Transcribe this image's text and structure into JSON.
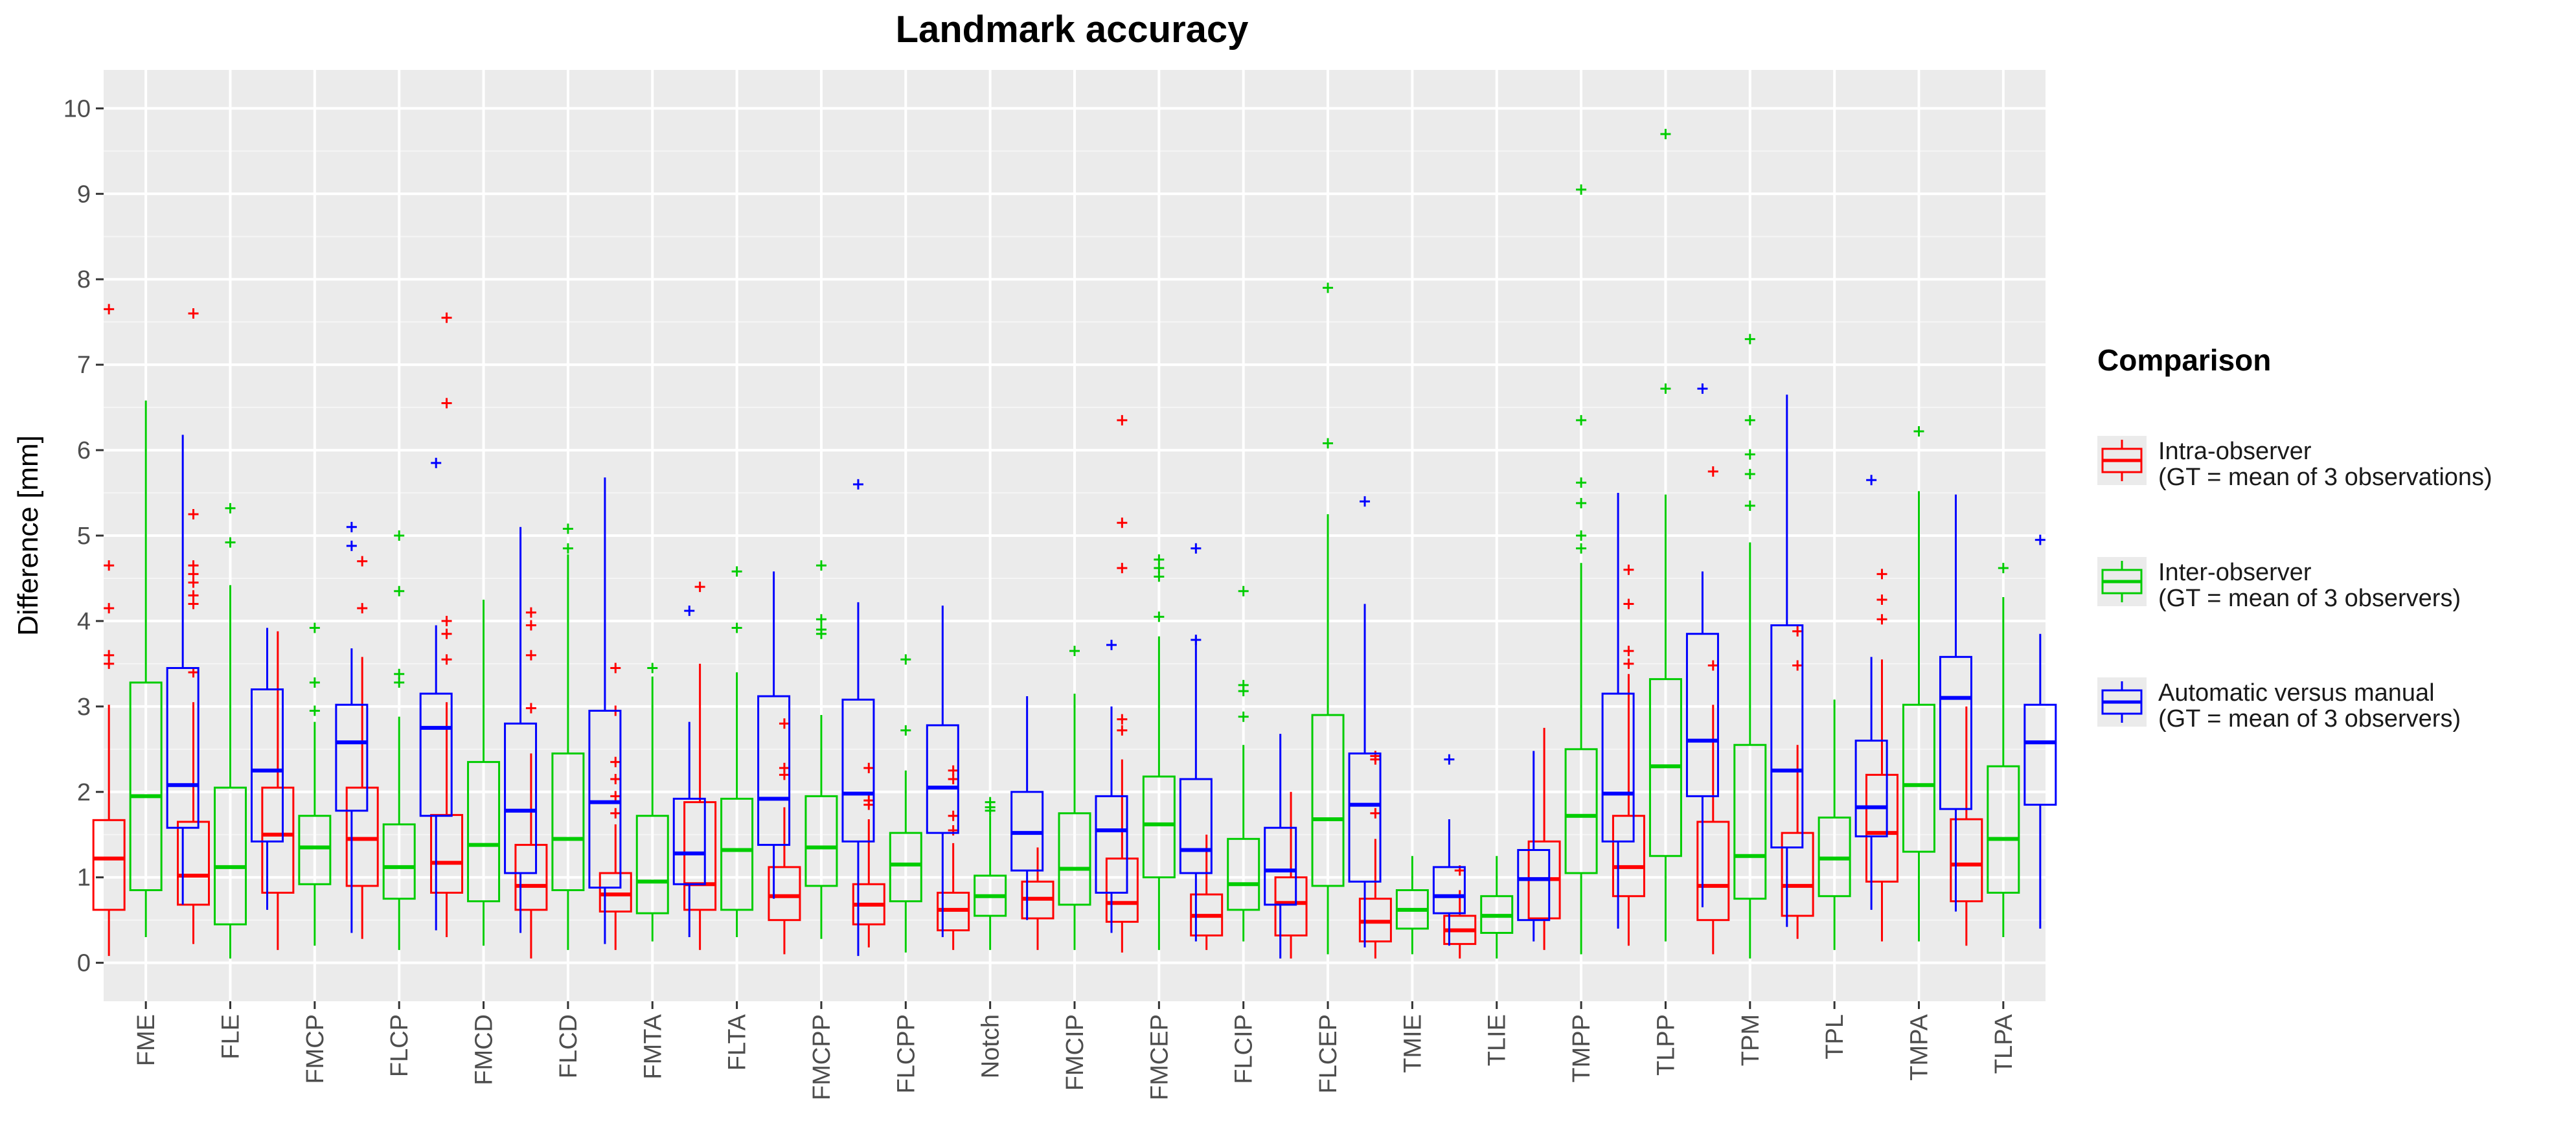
{
  "chart_data": {
    "type": "boxplot",
    "title": "Landmark accuracy",
    "xlabel": "",
    "ylabel": "Difference [mm]",
    "ylim": [
      -0.45,
      10.45
    ],
    "yticks": [
      0,
      1,
      2,
      3,
      4,
      5,
      6,
      7,
      8,
      9,
      10
    ],
    "grid": true,
    "legend_title": "Comparison",
    "legend_position": "right",
    "categories": [
      "FME",
      "FLE",
      "FMCP",
      "FLCP",
      "FMCD",
      "FLCD",
      "FMTA",
      "FLTA",
      "FMCPP",
      "FLCPP",
      "Notch",
      "FMCIP",
      "FMCEP",
      "FLCIP",
      "FLCEP",
      "TMIE",
      "TLIE",
      "TMPP",
      "TLPP",
      "TPM",
      "TPL",
      "TMPA",
      "TLPA"
    ],
    "series": [
      {
        "name": "Intra-observer",
        "label_lines": [
          "Intra-observer",
          "(GT = mean of 3 observations)"
        ],
        "color": "#ff0000",
        "stats": [
          {
            "min": 0.08,
            "q1": 0.62,
            "median": 1.22,
            "q3": 1.67,
            "max": 3.02,
            "outliers": [
              3.5,
              3.6,
              4.15,
              4.65,
              7.65
            ]
          },
          {
            "min": 0.22,
            "q1": 0.68,
            "median": 1.02,
            "q3": 1.65,
            "max": 3.05,
            "outliers": [
              3.4,
              4.2,
              4.3,
              4.45,
              4.55,
              4.65,
              5.25,
              7.6
            ]
          },
          {
            "min": 0.15,
            "q1": 0.82,
            "median": 1.5,
            "q3": 2.05,
            "max": 3.88,
            "outliers": []
          },
          {
            "min": 0.28,
            "q1": 0.9,
            "median": 1.45,
            "q3": 2.05,
            "max": 3.58,
            "outliers": [
              4.15,
              4.7
            ]
          },
          {
            "min": 0.3,
            "q1": 0.82,
            "median": 1.17,
            "q3": 1.73,
            "max": 3.05,
            "outliers": [
              3.55,
              3.85,
              4.0,
              6.55,
              7.55
            ]
          },
          {
            "min": 0.05,
            "q1": 0.62,
            "median": 0.9,
            "q3": 1.38,
            "max": 2.45,
            "outliers": [
              2.98,
              3.6,
              3.95,
              4.1
            ]
          },
          {
            "min": 0.15,
            "q1": 0.6,
            "median": 0.8,
            "q3": 1.05,
            "max": 1.62,
            "outliers": [
              1.75,
              1.95,
              2.15,
              2.35,
              2.95,
              3.45
            ]
          },
          {
            "min": 0.15,
            "q1": 0.62,
            "median": 0.92,
            "q3": 1.88,
            "max": 3.5,
            "outliers": [
              4.4
            ]
          },
          {
            "min": 0.1,
            "q1": 0.5,
            "median": 0.78,
            "q3": 1.12,
            "max": 1.82,
            "outliers": [
              2.2,
              2.28,
              2.8
            ]
          },
          {
            "min": 0.18,
            "q1": 0.45,
            "median": 0.68,
            "q3": 0.92,
            "max": 1.68,
            "outliers": [
              1.85,
              1.9,
              2.28
            ]
          },
          {
            "min": 0.15,
            "q1": 0.38,
            "median": 0.62,
            "q3": 0.82,
            "max": 1.4,
            "outliers": [
              1.55,
              1.72,
              2.15,
              2.25
            ]
          },
          {
            "min": 0.15,
            "q1": 0.52,
            "median": 0.75,
            "q3": 0.95,
            "max": 1.35,
            "outliers": []
          },
          {
            "min": 0.12,
            "q1": 0.48,
            "median": 0.7,
            "q3": 1.22,
            "max": 2.38,
            "outliers": [
              2.72,
              2.85,
              4.62,
              5.15,
              6.35
            ]
          },
          {
            "min": 0.15,
            "q1": 0.32,
            "median": 0.55,
            "q3": 0.8,
            "max": 1.5,
            "outliers": []
          },
          {
            "min": 0.05,
            "q1": 0.32,
            "median": 0.7,
            "q3": 1.0,
            "max": 2.0,
            "outliers": []
          },
          {
            "min": 0.05,
            "q1": 0.25,
            "median": 0.48,
            "q3": 0.75,
            "max": 1.45,
            "outliers": [
              1.75,
              2.38,
              2.42
            ]
          },
          {
            "min": 0.05,
            "q1": 0.22,
            "median": 0.38,
            "q3": 0.55,
            "max": 0.85,
            "outliers": [
              1.08
            ]
          },
          {
            "min": 0.15,
            "q1": 0.52,
            "median": 0.98,
            "q3": 1.42,
            "max": 2.75,
            "outliers": []
          },
          {
            "min": 0.2,
            "q1": 0.78,
            "median": 1.12,
            "q3": 1.72,
            "max": 3.38,
            "outliers": [
              3.5,
              3.65,
              4.2,
              4.6
            ]
          },
          {
            "min": 0.1,
            "q1": 0.5,
            "median": 0.9,
            "q3": 1.65,
            "max": 3.02,
            "outliers": [
              3.48,
              5.75
            ]
          },
          {
            "min": 0.28,
            "q1": 0.55,
            "median": 0.9,
            "q3": 1.52,
            "max": 2.55,
            "outliers": [
              3.48,
              3.88
            ]
          },
          {
            "min": 0.25,
            "q1": 0.95,
            "median": 1.52,
            "q3": 2.2,
            "max": 3.55,
            "outliers": [
              4.02,
              4.25,
              4.55
            ]
          },
          {
            "min": 0.2,
            "q1": 0.72,
            "median": 1.15,
            "q3": 1.68,
            "max": 3.0,
            "outliers": []
          }
        ]
      },
      {
        "name": "Inter-observer",
        "label_lines": [
          "Inter-observer",
          "(GT = mean of 3 observers)"
        ],
        "color": "#00cc00",
        "stats": [
          {
            "min": 0.3,
            "q1": 0.85,
            "median": 1.95,
            "q3": 3.28,
            "max": 6.58,
            "outliers": []
          },
          {
            "min": 0.05,
            "q1": 0.45,
            "median": 1.12,
            "q3": 2.05,
            "max": 4.42,
            "outliers": [
              4.92,
              5.32
            ]
          },
          {
            "min": 0.2,
            "q1": 0.92,
            "median": 1.35,
            "q3": 1.72,
            "max": 2.82,
            "outliers": [
              2.95,
              3.28,
              3.92
            ]
          },
          {
            "min": 0.15,
            "q1": 0.75,
            "median": 1.12,
            "q3": 1.62,
            "max": 2.88,
            "outliers": [
              3.28,
              3.38,
              4.35,
              5.0
            ]
          },
          {
            "min": 0.2,
            "q1": 0.72,
            "median": 1.38,
            "q3": 2.35,
            "max": 4.25,
            "outliers": []
          },
          {
            "min": 0.15,
            "q1": 0.85,
            "median": 1.45,
            "q3": 2.45,
            "max": 4.78,
            "outliers": [
              4.85,
              5.08
            ]
          },
          {
            "min": 0.25,
            "q1": 0.58,
            "median": 0.95,
            "q3": 1.72,
            "max": 3.35,
            "outliers": [
              3.45
            ]
          },
          {
            "min": 0.3,
            "q1": 0.62,
            "median": 1.32,
            "q3": 1.92,
            "max": 3.4,
            "outliers": [
              3.92,
              4.58
            ]
          },
          {
            "min": 0.28,
            "q1": 0.9,
            "median": 1.35,
            "q3": 1.95,
            "max": 2.9,
            "outliers": [
              3.85,
              3.9,
              4.02,
              4.65
            ]
          },
          {
            "min": 0.12,
            "q1": 0.72,
            "median": 1.15,
            "q3": 1.52,
            "max": 2.25,
            "outliers": [
              2.72,
              3.55
            ]
          },
          {
            "min": 0.15,
            "q1": 0.55,
            "median": 0.78,
            "q3": 1.02,
            "max": 1.72,
            "outliers": [
              1.78,
              1.82,
              1.88
            ]
          },
          {
            "min": 0.15,
            "q1": 0.68,
            "median": 1.1,
            "q3": 1.75,
            "max": 3.15,
            "outliers": [
              3.65
            ]
          },
          {
            "min": 0.15,
            "q1": 1.0,
            "median": 1.62,
            "q3": 2.18,
            "max": 3.82,
            "outliers": [
              4.05,
              4.52,
              4.62,
              4.72
            ]
          },
          {
            "min": 0.25,
            "q1": 0.62,
            "median": 0.92,
            "q3": 1.45,
            "max": 2.55,
            "outliers": [
              2.88,
              3.18,
              3.25,
              4.35
            ]
          },
          {
            "min": 0.1,
            "q1": 0.9,
            "median": 1.68,
            "q3": 2.9,
            "max": 5.25,
            "outliers": [
              6.08,
              7.9
            ]
          },
          {
            "min": 0.1,
            "q1": 0.4,
            "median": 0.62,
            "q3": 0.85,
            "max": 1.25,
            "outliers": []
          },
          {
            "min": 0.05,
            "q1": 0.35,
            "median": 0.55,
            "q3": 0.78,
            "max": 1.25,
            "outliers": []
          },
          {
            "min": 0.1,
            "q1": 1.05,
            "median": 1.72,
            "q3": 2.5,
            "max": 4.68,
            "outliers": [
              4.85,
              5.0,
              5.38,
              5.62,
              6.35,
              9.05
            ]
          },
          {
            "min": 0.25,
            "q1": 1.25,
            "median": 2.3,
            "q3": 3.32,
            "max": 5.48,
            "outliers": [
              6.72,
              9.7
            ]
          },
          {
            "min": 0.05,
            "q1": 0.75,
            "median": 1.25,
            "q3": 2.55,
            "max": 4.92,
            "outliers": [
              5.35,
              5.72,
              5.95,
              6.35,
              7.3
            ]
          },
          {
            "min": 0.15,
            "q1": 0.78,
            "median": 1.22,
            "q3": 1.7,
            "max": 3.08,
            "outliers": []
          },
          {
            "min": 0.25,
            "q1": 1.3,
            "median": 2.08,
            "q3": 3.02,
            "max": 5.52,
            "outliers": [
              6.22
            ]
          },
          {
            "min": 0.3,
            "q1": 0.82,
            "median": 1.45,
            "q3": 2.3,
            "max": 4.28,
            "outliers": [
              4.62
            ]
          }
        ]
      },
      {
        "name": "Automatic versus manual",
        "label_lines": [
          "Automatic versus manual",
          "(GT = mean of 3 observers)"
        ],
        "color": "#0000ff",
        "stats": [
          {
            "min": 0.68,
            "q1": 1.58,
            "median": 2.08,
            "q3": 3.45,
            "max": 6.18,
            "outliers": []
          },
          {
            "min": 0.62,
            "q1": 1.42,
            "median": 2.25,
            "q3": 3.2,
            "max": 3.92,
            "outliers": []
          },
          {
            "min": 0.35,
            "q1": 1.78,
            "median": 2.58,
            "q3": 3.02,
            "max": 3.68,
            "outliers": [
              4.88,
              5.1
            ]
          },
          {
            "min": 0.38,
            "q1": 1.72,
            "median": 2.75,
            "q3": 3.15,
            "max": 3.95,
            "outliers": [
              5.85
            ]
          },
          {
            "min": 0.35,
            "q1": 1.05,
            "median": 1.78,
            "q3": 2.8,
            "max": 5.1,
            "outliers": []
          },
          {
            "min": 0.22,
            "q1": 0.88,
            "median": 1.88,
            "q3": 2.95,
            "max": 5.68,
            "outliers": []
          },
          {
            "min": 0.3,
            "q1": 0.92,
            "median": 1.28,
            "q3": 1.92,
            "max": 2.82,
            "outliers": [
              4.12
            ]
          },
          {
            "min": 0.75,
            "q1": 1.38,
            "median": 1.92,
            "q3": 3.12,
            "max": 4.58,
            "outliers": []
          },
          {
            "min": 0.08,
            "q1": 1.42,
            "median": 1.98,
            "q3": 3.08,
            "max": 4.22,
            "outliers": [
              5.6
            ]
          },
          {
            "min": 0.3,
            "q1": 1.52,
            "median": 2.05,
            "q3": 2.78,
            "max": 4.18,
            "outliers": []
          },
          {
            "min": 0.5,
            "q1": 1.08,
            "median": 1.52,
            "q3": 2.0,
            "max": 3.12,
            "outliers": []
          },
          {
            "min": 0.35,
            "q1": 0.82,
            "median": 1.55,
            "q3": 1.95,
            "max": 3.0,
            "outliers": [
              3.72
            ]
          },
          {
            "min": 0.25,
            "q1": 1.05,
            "median": 1.32,
            "q3": 2.15,
            "max": 3.82,
            "outliers": [
              3.78,
              4.85
            ]
          },
          {
            "min": 0.05,
            "q1": 0.68,
            "median": 1.08,
            "q3": 1.58,
            "max": 2.68,
            "outliers": []
          },
          {
            "min": 0.18,
            "q1": 0.95,
            "median": 1.85,
            "q3": 2.45,
            "max": 4.2,
            "outliers": [
              5.4
            ]
          },
          {
            "min": 0.2,
            "q1": 0.58,
            "median": 0.78,
            "q3": 1.12,
            "max": 1.68,
            "outliers": [
              2.38
            ]
          },
          {
            "min": 0.25,
            "q1": 0.5,
            "median": 0.98,
            "q3": 1.32,
            "max": 2.48,
            "outliers": []
          },
          {
            "min": 0.4,
            "q1": 1.42,
            "median": 1.98,
            "q3": 3.15,
            "max": 5.5,
            "outliers": []
          },
          {
            "min": 0.65,
            "q1": 1.95,
            "median": 2.6,
            "q3": 3.85,
            "max": 4.58,
            "outliers": [
              6.72
            ]
          },
          {
            "min": 0.42,
            "q1": 1.35,
            "median": 2.25,
            "q3": 3.95,
            "max": 6.65,
            "outliers": []
          },
          {
            "min": 0.62,
            "q1": 1.48,
            "median": 1.82,
            "q3": 2.6,
            "max": 3.58,
            "outliers": [
              5.65
            ]
          },
          {
            "min": 0.6,
            "q1": 1.8,
            "median": 3.1,
            "q3": 3.58,
            "max": 5.48,
            "outliers": []
          },
          {
            "min": 0.4,
            "q1": 1.85,
            "median": 2.58,
            "q3": 3.02,
            "max": 3.85,
            "outliers": [
              4.95
            ]
          }
        ]
      }
    ]
  }
}
